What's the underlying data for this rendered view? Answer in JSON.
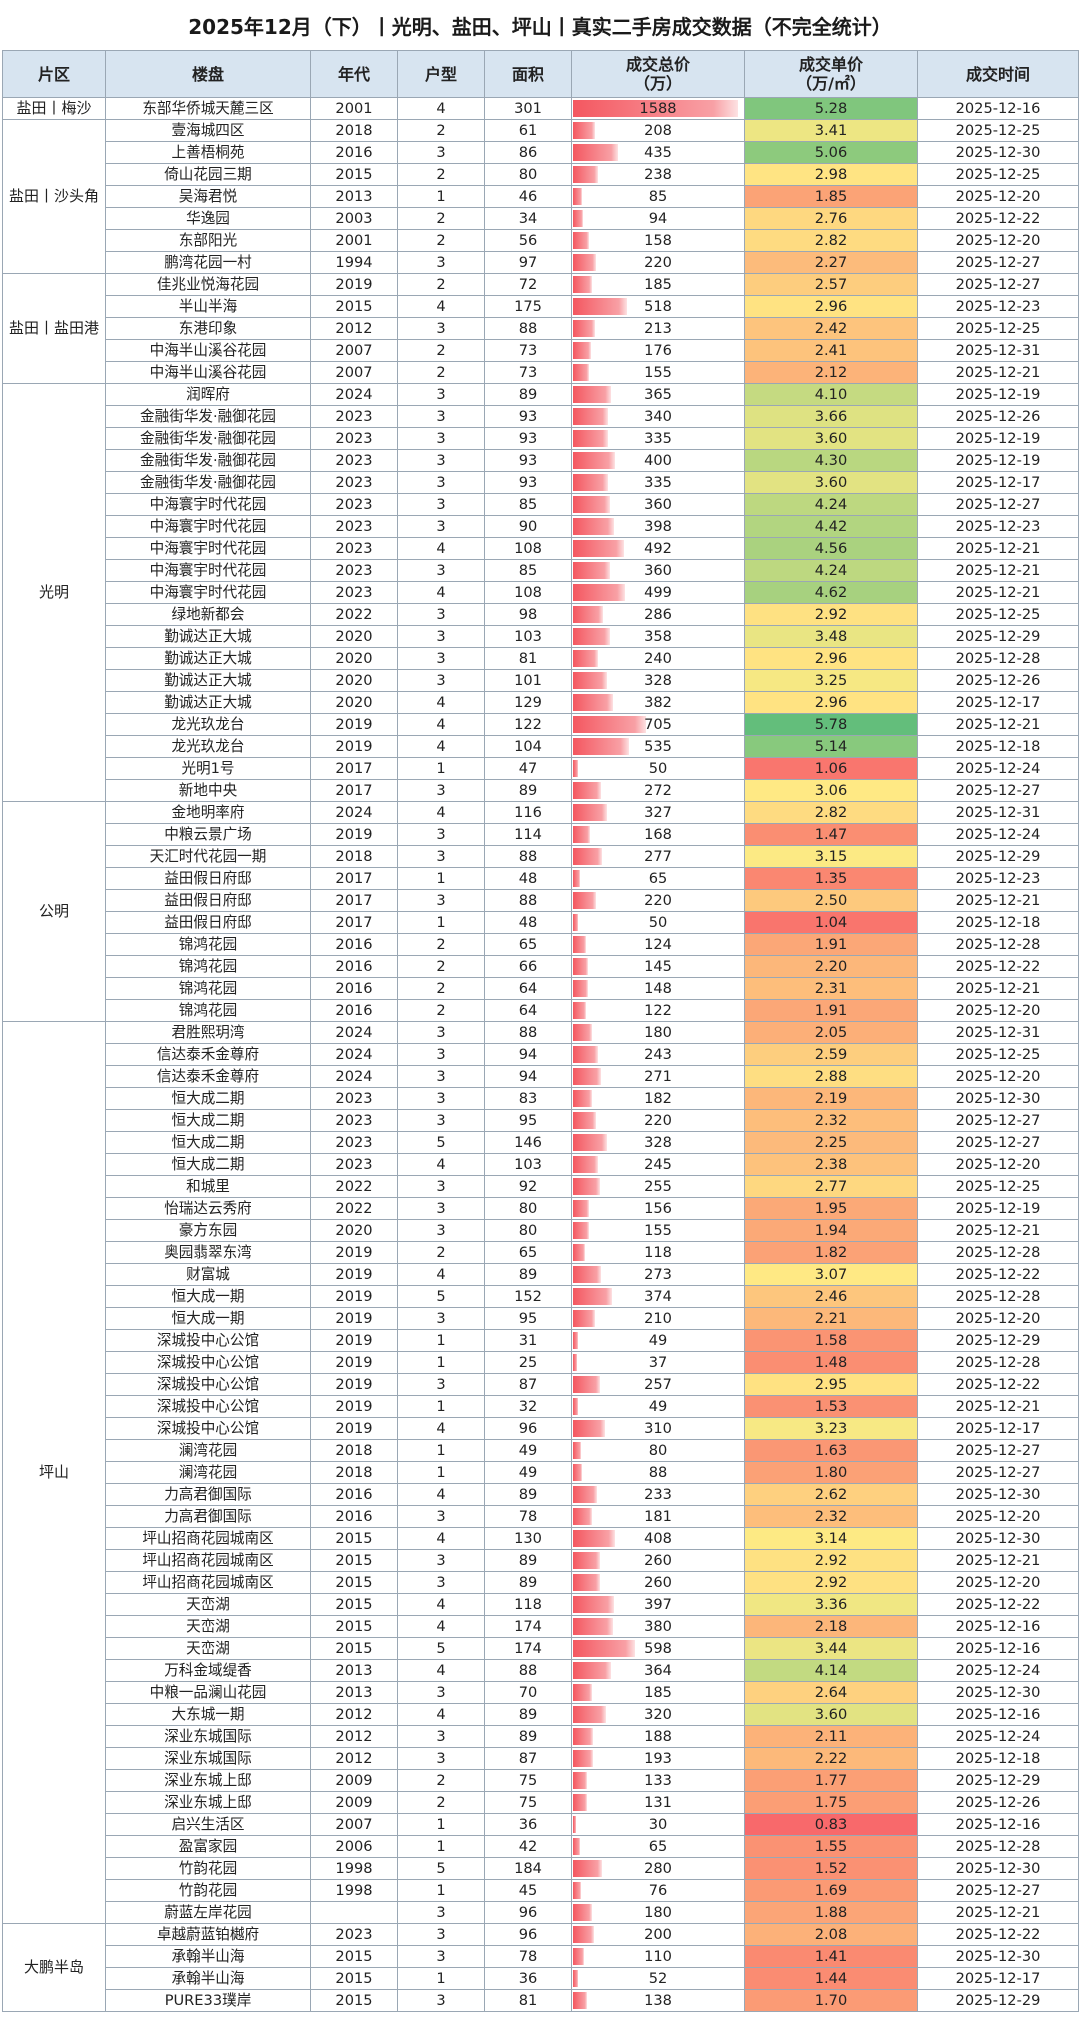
{
  "title": "2025年12月（下）丨光明、盐田、坪山丨真实二手房成交数据（不完全统计）",
  "headers": {
    "district": "片区",
    "estate": "楼盘",
    "year": "年代",
    "layout": "户型",
    "area": "面积",
    "total": "成交总价",
    "total_unit": "（万）",
    "price": "成交单价",
    "price_unit": "（万/㎡）",
    "date": "成交时间"
  },
  "colors": {
    "header_bg": "#d7e4f0",
    "grid": "#9aa7b4",
    "price_low": "#f8696b",
    "price_mid": "#ffeb84",
    "price_high": "#63be7b",
    "bar": "#f45760"
  },
  "groups": [
    {
      "district": "盐田丨梅沙",
      "rows": [
        [
          "东部华侨城天麓三区",
          "2001",
          "4",
          "301",
          "1588",
          "5.28",
          "2025-12-16"
        ]
      ]
    },
    {
      "district": "盐田丨沙头角",
      "rows": [
        [
          "壹海城四区",
          "2018",
          "2",
          "61",
          "208",
          "3.41",
          "2025-12-25"
        ],
        [
          "上善梧桐苑",
          "2016",
          "3",
          "86",
          "435",
          "5.06",
          "2025-12-30"
        ],
        [
          "倚山花园三期",
          "2015",
          "2",
          "80",
          "238",
          "2.98",
          "2025-12-25"
        ],
        [
          "吴海君悦",
          "2013",
          "1",
          "46",
          "85",
          "1.85",
          "2025-12-20"
        ],
        [
          "华逸园",
          "2003",
          "2",
          "34",
          "94",
          "2.76",
          "2025-12-22"
        ],
        [
          "东部阳光",
          "2001",
          "2",
          "56",
          "158",
          "2.82",
          "2025-12-20"
        ],
        [
          "鹏湾花园一村",
          "1994",
          "3",
          "97",
          "220",
          "2.27",
          "2025-12-27"
        ]
      ]
    },
    {
      "district": "盐田丨盐田港",
      "rows": [
        [
          "佳兆业悦海花园",
          "2019",
          "2",
          "72",
          "185",
          "2.57",
          "2025-12-27"
        ],
        [
          "半山半海",
          "2015",
          "4",
          "175",
          "518",
          "2.96",
          "2025-12-23"
        ],
        [
          "东港印象",
          "2012",
          "3",
          "88",
          "213",
          "2.42",
          "2025-12-25"
        ],
        [
          "中海半山溪谷花园",
          "2007",
          "2",
          "73",
          "176",
          "2.41",
          "2025-12-31"
        ],
        [
          "中海半山溪谷花园",
          "2007",
          "2",
          "73",
          "155",
          "2.12",
          "2025-12-21"
        ]
      ]
    },
    {
      "district": "光明",
      "rows": [
        [
          "润晖府",
          "2024",
          "3",
          "89",
          "365",
          "4.10",
          "2025-12-19"
        ],
        [
          "金融街华发·融御花园",
          "2023",
          "3",
          "93",
          "340",
          "3.66",
          "2025-12-26"
        ],
        [
          "金融街华发·融御花园",
          "2023",
          "3",
          "93",
          "335",
          "3.60",
          "2025-12-19"
        ],
        [
          "金融街华发·融御花园",
          "2023",
          "3",
          "93",
          "400",
          "4.30",
          "2025-12-19"
        ],
        [
          "金融街华发·融御花园",
          "2023",
          "3",
          "93",
          "335",
          "3.60",
          "2025-12-17"
        ],
        [
          "中海寰宇时代花园",
          "2023",
          "3",
          "85",
          "360",
          "4.24",
          "2025-12-27"
        ],
        [
          "中海寰宇时代花园",
          "2023",
          "3",
          "90",
          "398",
          "4.42",
          "2025-12-23"
        ],
        [
          "中海寰宇时代花园",
          "2023",
          "4",
          "108",
          "492",
          "4.56",
          "2025-12-21"
        ],
        [
          "中海寰宇时代花园",
          "2023",
          "3",
          "85",
          "360",
          "4.24",
          "2025-12-21"
        ],
        [
          "中海寰宇时代花园",
          "2023",
          "4",
          "108",
          "499",
          "4.62",
          "2025-12-21"
        ],
        [
          "绿地新都会",
          "2022",
          "3",
          "98",
          "286",
          "2.92",
          "2025-12-25"
        ],
        [
          "勤诚达正大城",
          "2020",
          "3",
          "103",
          "358",
          "3.48",
          "2025-12-29"
        ],
        [
          "勤诚达正大城",
          "2020",
          "3",
          "81",
          "240",
          "2.96",
          "2025-12-28"
        ],
        [
          "勤诚达正大城",
          "2020",
          "3",
          "101",
          "328",
          "3.25",
          "2025-12-26"
        ],
        [
          "勤诚达正大城",
          "2020",
          "4",
          "129",
          "382",
          "2.96",
          "2025-12-17"
        ],
        [
          "龙光玖龙台",
          "2019",
          "4",
          "122",
          "705",
          "5.78",
          "2025-12-21"
        ],
        [
          "龙光玖龙台",
          "2019",
          "4",
          "104",
          "535",
          "5.14",
          "2025-12-18"
        ],
        [
          "光明1号",
          "2017",
          "1",
          "47",
          "50",
          "1.06",
          "2025-12-24"
        ],
        [
          "新地中央",
          "2017",
          "3",
          "89",
          "272",
          "3.06",
          "2025-12-27"
        ]
      ]
    },
    {
      "district": "公明",
      "rows": [
        [
          "金地明率府",
          "2024",
          "4",
          "116",
          "327",
          "2.82",
          "2025-12-31"
        ],
        [
          "中粮云景广场",
          "2019",
          "3",
          "114",
          "168",
          "1.47",
          "2025-12-24"
        ],
        [
          "天汇时代花园一期",
          "2018",
          "3",
          "88",
          "277",
          "3.15",
          "2025-12-29"
        ],
        [
          "益田假日府邸",
          "2017",
          "1",
          "48",
          "65",
          "1.35",
          "2025-12-23"
        ],
        [
          "益田假日府邸",
          "2017",
          "3",
          "88",
          "220",
          "2.50",
          "2025-12-21"
        ],
        [
          "益田假日府邸",
          "2017",
          "1",
          "48",
          "50",
          "1.04",
          "2025-12-18"
        ],
        [
          "锦鸿花园",
          "2016",
          "2",
          "65",
          "124",
          "1.91",
          "2025-12-28"
        ],
        [
          "锦鸿花园",
          "2016",
          "2",
          "66",
          "145",
          "2.20",
          "2025-12-22"
        ],
        [
          "锦鸿花园",
          "2016",
          "2",
          "64",
          "148",
          "2.31",
          "2025-12-21"
        ],
        [
          "锦鸿花园",
          "2016",
          "2",
          "64",
          "122",
          "1.91",
          "2025-12-20"
        ]
      ]
    },
    {
      "district": "坪山",
      "rows": [
        [
          "君胜熙玥湾",
          "2024",
          "3",
          "88",
          "180",
          "2.05",
          "2025-12-31"
        ],
        [
          "信达泰禾金尊府",
          "2024",
          "3",
          "94",
          "243",
          "2.59",
          "2025-12-25"
        ],
        [
          "信达泰禾金尊府",
          "2024",
          "3",
          "94",
          "271",
          "2.88",
          "2025-12-20"
        ],
        [
          "恒大成二期",
          "2023",
          "3",
          "83",
          "182",
          "2.19",
          "2025-12-30"
        ],
        [
          "恒大成二期",
          "2023",
          "3",
          "95",
          "220",
          "2.32",
          "2025-12-27"
        ],
        [
          "恒大成二期",
          "2023",
          "5",
          "146",
          "328",
          "2.25",
          "2025-12-27"
        ],
        [
          "恒大成二期",
          "2023",
          "4",
          "103",
          "245",
          "2.38",
          "2025-12-20"
        ],
        [
          "和城里",
          "2022",
          "3",
          "92",
          "255",
          "2.77",
          "2025-12-25"
        ],
        [
          "怡瑞达云秀府",
          "2022",
          "3",
          "80",
          "156",
          "1.95",
          "2025-12-19"
        ],
        [
          "豪方东园",
          "2020",
          "3",
          "80",
          "155",
          "1.94",
          "2025-12-21"
        ],
        [
          "奥园翡翠东湾",
          "2019",
          "2",
          "65",
          "118",
          "1.82",
          "2025-12-28"
        ],
        [
          "财富城",
          "2019",
          "4",
          "89",
          "273",
          "3.07",
          "2025-12-22"
        ],
        [
          "恒大成一期",
          "2019",
          "5",
          "152",
          "374",
          "2.46",
          "2025-12-28"
        ],
        [
          "恒大成一期",
          "2019",
          "3",
          "95",
          "210",
          "2.21",
          "2025-12-20"
        ],
        [
          "深城投中心公馆",
          "2019",
          "1",
          "31",
          "49",
          "1.58",
          "2025-12-29"
        ],
        [
          "深城投中心公馆",
          "2019",
          "1",
          "25",
          "37",
          "1.48",
          "2025-12-28"
        ],
        [
          "深城投中心公馆",
          "2019",
          "3",
          "87",
          "257",
          "2.95",
          "2025-12-22"
        ],
        [
          "深城投中心公馆",
          "2019",
          "1",
          "32",
          "49",
          "1.53",
          "2025-12-21"
        ],
        [
          "深城投中心公馆",
          "2019",
          "4",
          "96",
          "310",
          "3.23",
          "2025-12-17"
        ],
        [
          "澜湾花园",
          "2018",
          "1",
          "49",
          "80",
          "1.63",
          "2025-12-27"
        ],
        [
          "澜湾花园",
          "2018",
          "1",
          "49",
          "88",
          "1.80",
          "2025-12-27"
        ],
        [
          "力高君御国际",
          "2016",
          "4",
          "89",
          "233",
          "2.62",
          "2025-12-30"
        ],
        [
          "力高君御国际",
          "2016",
          "3",
          "78",
          "181",
          "2.32",
          "2025-12-20"
        ],
        [
          "坪山招商花园城南区",
          "2015",
          "4",
          "130",
          "408",
          "3.14",
          "2025-12-30"
        ],
        [
          "坪山招商花园城南区",
          "2015",
          "3",
          "89",
          "260",
          "2.92",
          "2025-12-21"
        ],
        [
          "坪山招商花园城南区",
          "2015",
          "3",
          "89",
          "260",
          "2.92",
          "2025-12-20"
        ],
        [
          "天峦湖",
          "2015",
          "4",
          "118",
          "397",
          "3.36",
          "2025-12-22"
        ],
        [
          "天峦湖",
          "2015",
          "4",
          "174",
          "380",
          "2.18",
          "2025-12-16"
        ],
        [
          "天峦湖",
          "2015",
          "5",
          "174",
          "598",
          "3.44",
          "2025-12-16"
        ],
        [
          "万科金域缇香",
          "2013",
          "4",
          "88",
          "364",
          "4.14",
          "2025-12-24"
        ],
        [
          "中粮一品澜山花园",
          "2013",
          "3",
          "70",
          "185",
          "2.64",
          "2025-12-30"
        ],
        [
          "大东城一期",
          "2012",
          "4",
          "89",
          "320",
          "3.60",
          "2025-12-16"
        ],
        [
          "深业东城国际",
          "2012",
          "3",
          "89",
          "188",
          "2.11",
          "2025-12-24"
        ],
        [
          "深业东城国际",
          "2012",
          "3",
          "87",
          "193",
          "2.22",
          "2025-12-18"
        ],
        [
          "深业东城上邸",
          "2009",
          "2",
          "75",
          "133",
          "1.77",
          "2025-12-29"
        ],
        [
          "深业东城上邸",
          "2009",
          "2",
          "75",
          "131",
          "1.75",
          "2025-12-26"
        ],
        [
          "启兴生活区",
          "2007",
          "1",
          "36",
          "30",
          "0.83",
          "2025-12-16"
        ],
        [
          "盈富家园",
          "2006",
          "1",
          "42",
          "65",
          "1.55",
          "2025-12-28"
        ],
        [
          "竹韵花园",
          "1998",
          "5",
          "184",
          "280",
          "1.52",
          "2025-12-30"
        ],
        [
          "竹韵花园",
          "1998",
          "1",
          "45",
          "76",
          "1.69",
          "2025-12-27"
        ],
        [
          "蔚蓝左岸花园",
          "",
          "3",
          "96",
          "180",
          "1.88",
          "2025-12-21"
        ]
      ]
    },
    {
      "district": "大鹏半岛",
      "rows": [
        [
          "卓越蔚蓝铂樾府",
          "2023",
          "3",
          "96",
          "200",
          "2.08",
          "2025-12-22"
        ],
        [
          "承翰半山海",
          "2015",
          "3",
          "78",
          "110",
          "1.41",
          "2025-12-30"
        ],
        [
          "承翰半山海",
          "2015",
          "1",
          "36",
          "52",
          "1.44",
          "2025-12-17"
        ],
        [
          "PURE33璞岸",
          "2015",
          "3",
          "81",
          "138",
          "1.70",
          "2025-12-29"
        ]
      ]
    }
  ]
}
